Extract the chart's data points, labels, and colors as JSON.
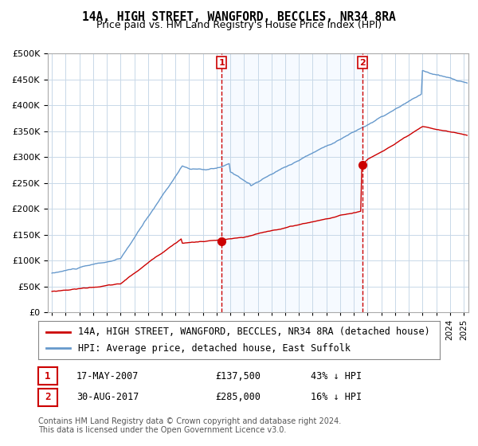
{
  "title": "14A, HIGH STREET, WANGFORD, BECCLES, NR34 8RA",
  "subtitle": "Price paid vs. HM Land Registry's House Price Index (HPI)",
  "xlabel": "",
  "ylabel": "",
  "background_color": "#ffffff",
  "plot_bg_color": "#ffffff",
  "grid_color": "#c8d8e8",
  "hpi_color": "#6699cc",
  "price_color": "#cc0000",
  "shade_color": "#ddeeff",
  "ylim": [
    0,
    500000
  ],
  "ytick_labels": [
    "£0",
    "£50K",
    "£100K",
    "£150K",
    "£200K",
    "£250K",
    "£300K",
    "£350K",
    "£400K",
    "£450K",
    "£500K"
  ],
  "ytick_values": [
    0,
    50000,
    100000,
    150000,
    200000,
    250000,
    300000,
    350000,
    400000,
    450000,
    500000
  ],
  "marker1_date": "2007-05-17",
  "marker1_label": "1",
  "marker1_price": 137500,
  "marker1_hpi_pct": "43% ↓ HPI",
  "marker2_date": "2017-08-30",
  "marker2_label": "2",
  "marker2_price": 285000,
  "marker2_hpi_pct": "16% ↓ HPI",
  "legend_line1": "14A, HIGH STREET, WANGFORD, BECCLES, NR34 8RA (detached house)",
  "legend_line2": "HPI: Average price, detached house, East Suffolk",
  "table_row1": [
    "1",
    "17-MAY-2007",
    "£137,500",
    "43% ↓ HPI"
  ],
  "table_row2": [
    "2",
    "30-AUG-2017",
    "£285,000",
    "16% ↓ HPI"
  ],
  "footer": "Contains HM Land Registry data © Crown copyright and database right 2024.\nThis data is licensed under the Open Government Licence v3.0.",
  "title_fontsize": 10.5,
  "subtitle_fontsize": 9,
  "tick_fontsize": 8,
  "legend_fontsize": 8.5,
  "table_fontsize": 8.5,
  "footer_fontsize": 7
}
